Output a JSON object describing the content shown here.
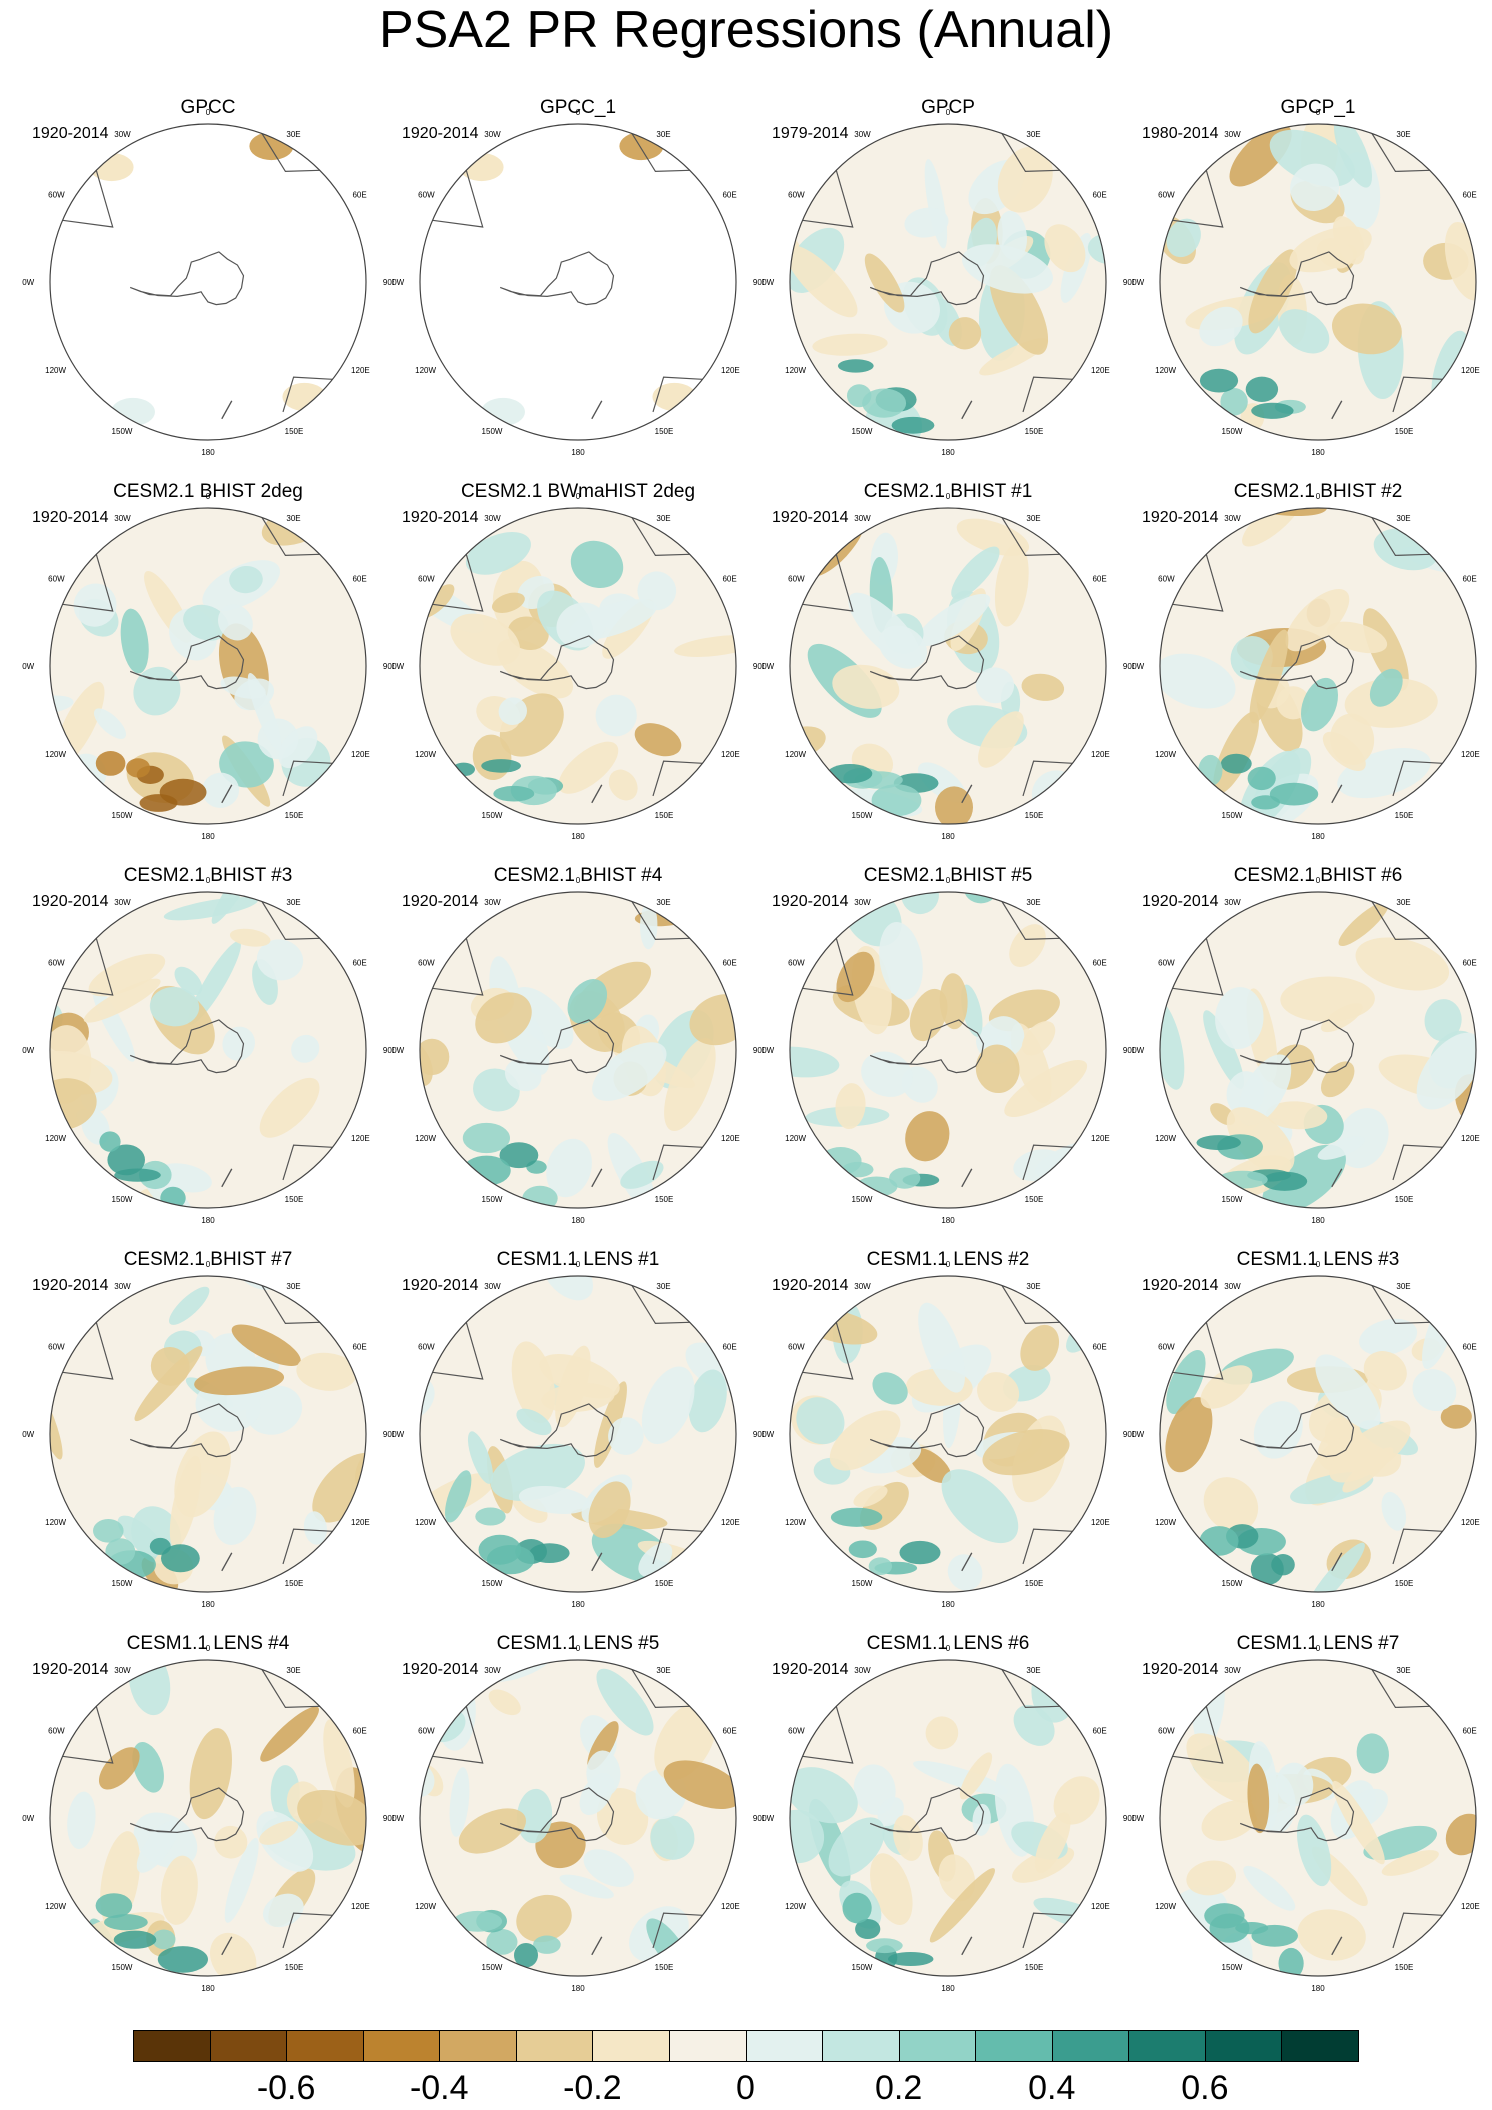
{
  "title": "PSA2 PR Regressions (Annual)",
  "panels": [
    {
      "title": "GPCC",
      "period": "1920-2014",
      "coverage": "land-only"
    },
    {
      "title": "GPCC_1",
      "period": "1920-2014",
      "coverage": "land-only"
    },
    {
      "title": "GPCP",
      "period": "1979-2014",
      "coverage": "full"
    },
    {
      "title": "GPCP_1",
      "period": "1980-2014",
      "coverage": "full"
    },
    {
      "title": "CESM2.1 BHIST 2deg",
      "period": "1920-2014",
      "coverage": "full"
    },
    {
      "title": "CESM2.1 BWmaHIST 2deg",
      "period": "1920-2014",
      "coverage": "full"
    },
    {
      "title": "CESM2.1 BHIST #1",
      "period": "1920-2014",
      "coverage": "full"
    },
    {
      "title": "CESM2.1 BHIST #2",
      "period": "1920-2014",
      "coverage": "full"
    },
    {
      "title": "CESM2.1 BHIST #3",
      "period": "1920-2014",
      "coverage": "full"
    },
    {
      "title": "CESM2.1 BHIST #4",
      "period": "1920-2014",
      "coverage": "full"
    },
    {
      "title": "CESM2.1 BHIST #5",
      "period": "1920-2014",
      "coverage": "full"
    },
    {
      "title": "CESM2.1 BHIST #6",
      "period": "1920-2014",
      "coverage": "full"
    },
    {
      "title": "CESM2.1 BHIST #7",
      "period": "1920-2014",
      "coverage": "full"
    },
    {
      "title": "CESM1.1 LENS #1",
      "period": "1920-2014",
      "coverage": "full"
    },
    {
      "title": "CESM1.1 LENS #2",
      "period": "1920-2014",
      "coverage": "full"
    },
    {
      "title": "CESM1.1 LENS #3",
      "period": "1920-2014",
      "coverage": "full"
    },
    {
      "title": "CESM1.1 LENS #4",
      "period": "1920-2014",
      "coverage": "full"
    },
    {
      "title": "CESM1.1 LENS #5",
      "period": "1920-2014",
      "coverage": "full"
    },
    {
      "title": "CESM1.1 LENS #6",
      "period": "1920-2014",
      "coverage": "full"
    },
    {
      "title": "CESM1.1 LENS #7",
      "period": "1920-2014",
      "coverage": "full"
    }
  ],
  "longitude_labels": [
    "0",
    "30E",
    "60E",
    "90E",
    "120E",
    "150E",
    "180",
    "150W",
    "120W",
    "90W",
    "60W",
    "30W"
  ],
  "chart_data": {
    "type": "heatmap",
    "projection": "south-polar-stereographic",
    "layout": "5 rows x 4 columns of polar maps",
    "colorbar": {
      "colors": [
        "#5a3408",
        "#7d4a10",
        "#9c6118",
        "#bc832f",
        "#d2a862",
        "#e6cd96",
        "#f5e7c6",
        "#f6f1e6",
        "#e3f1ef",
        "#c3e7e1",
        "#92d3c7",
        "#64bcad",
        "#3b9d8f",
        "#1c7d6f",
        "#0a6054",
        "#013d33"
      ],
      "boundaries": [
        -0.7,
        -0.6,
        -0.5,
        -0.4,
        -0.3,
        -0.2,
        -0.1,
        0,
        0.1,
        0.2,
        0.3,
        0.4,
        0.5,
        0.6,
        0.7
      ],
      "tick_labels": [
        "-0.6",
        "-0.4",
        "-0.2",
        "0",
        "0.2",
        "0.4",
        "0.6"
      ],
      "extend": "both"
    }
  }
}
